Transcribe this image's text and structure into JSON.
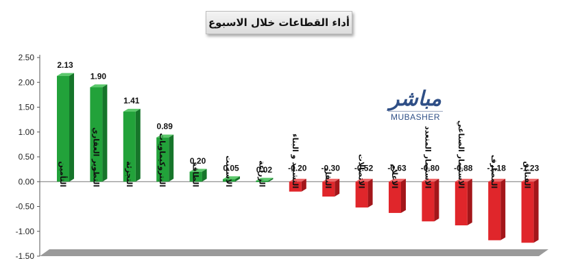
{
  "chart_data": {
    "type": "bar",
    "title": "أداء القطاعات خلال الاسبوع",
    "categories": [
      "التأمين",
      "التطوير العقاري",
      "التجزئة",
      "البتروكيماويات",
      "الطاقة",
      "الاسمنت",
      "الزراعة",
      "التشييد و البناء",
      "النقل",
      "الاتصالات",
      "الاعلام",
      "الاستثمار المتعدد",
      "الاستثمار الصناعي",
      "المصارف",
      "الفنادق"
    ],
    "values": [
      2.13,
      1.9,
      1.41,
      0.89,
      0.2,
      0.05,
      0.02,
      -0.2,
      -0.3,
      -0.52,
      -0.63,
      -0.8,
      -0.88,
      -1.18,
      -1.23
    ],
    "value_labels": [
      "2.13",
      "1.90",
      "1.41",
      "0.89",
      "0.20",
      "0.05",
      "0.02",
      "-0.20",
      "-0.30",
      "-0.52",
      "-0.63",
      "-0.80",
      "-0.88",
      "-1.18",
      "-1.23"
    ],
    "ylim": [
      -1.5,
      2.5
    ],
    "yticks": [
      "2.50",
      "2.00",
      "1.50",
      "1.00",
      "0.50",
      "0.00",
      "-0.50",
      "-1.00",
      "-1.50"
    ],
    "ytick_values": [
      2.5,
      2.0,
      1.5,
      1.0,
      0.5,
      0.0,
      -0.5,
      -1.0,
      -1.5
    ],
    "xlabel": "",
    "ylabel": "",
    "grid": false,
    "legend": "none",
    "colors": {
      "positive": "#22a23a",
      "positive_dark": "#16752a",
      "negative": "#e0262b",
      "negative_dark": "#a3161a",
      "floor": "#9a9a9a"
    }
  },
  "logo": {
    "arabic": "مباشر",
    "latin": "MUBASHER"
  }
}
